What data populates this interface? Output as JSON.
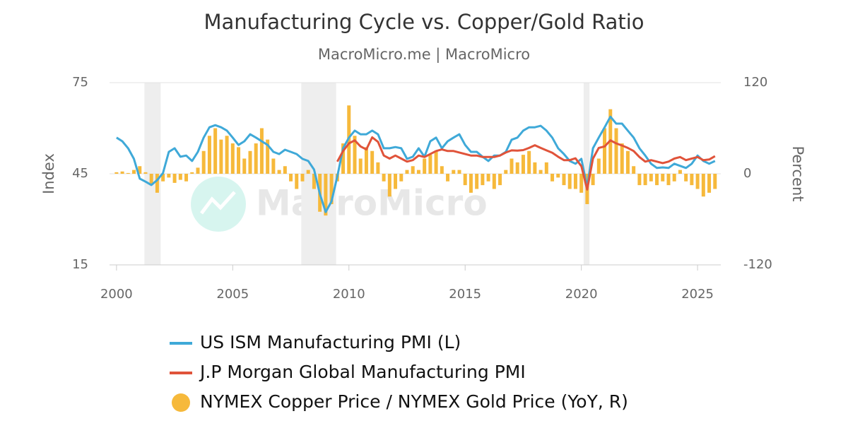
{
  "chart_data": {
    "type": "combo",
    "title": "Manufacturing Cycle vs. Copper/Gold Ratio",
    "subtitle": "MacroMicro.me | MacroMicro",
    "watermark": "MacroMicro",
    "ylabel": "Index",
    "y2label": "Percent",
    "xlim": [
      1999.7,
      2026.0
    ],
    "xticks": [
      2000,
      2005,
      2010,
      2015,
      2020,
      2025
    ],
    "ylim": [
      15,
      75
    ],
    "yticks": [
      15,
      45,
      75
    ],
    "y2lim": [
      -120,
      120
    ],
    "y2ticks": [
      -120,
      0,
      120
    ],
    "grid": true,
    "recessions": [
      [
        2001.2,
        2001.9
      ],
      [
        2007.95,
        2009.45
      ],
      [
        2020.1,
        2020.35
      ]
    ],
    "x": [
      2000,
      2000.25,
      2000.5,
      2000.75,
      2001,
      2001.25,
      2001.5,
      2001.75,
      2002,
      2002.25,
      2002.5,
      2002.75,
      2003,
      2003.25,
      2003.5,
      2003.75,
      2004,
      2004.25,
      2004.5,
      2004.75,
      2005,
      2005.25,
      2005.5,
      2005.75,
      2006,
      2006.25,
      2006.5,
      2006.75,
      2007,
      2007.25,
      2007.5,
      2007.75,
      2008,
      2008.25,
      2008.5,
      2008.75,
      2009,
      2009.25,
      2009.5,
      2009.75,
      2010,
      2010.25,
      2010.5,
      2010.75,
      2011,
      2011.25,
      2011.5,
      2011.75,
      2012,
      2012.25,
      2012.5,
      2012.75,
      2013,
      2013.25,
      2013.5,
      2013.75,
      2014,
      2014.25,
      2014.5,
      2014.75,
      2015,
      2015.25,
      2015.5,
      2015.75,
      2016,
      2016.25,
      2016.5,
      2016.75,
      2017,
      2017.25,
      2017.5,
      2017.75,
      2018,
      2018.25,
      2018.5,
      2018.75,
      2019,
      2019.25,
      2019.5,
      2019.75,
      2020,
      2020.25,
      2020.5,
      2020.75,
      2021,
      2021.25,
      2021.5,
      2021.75,
      2022,
      2022.25,
      2022.5,
      2022.75,
      2023,
      2023.25,
      2023.5,
      2023.75,
      2024,
      2024.25,
      2024.5,
      2024.75,
      2025,
      2025.25,
      2025.5,
      2025.75
    ],
    "series": [
      {
        "name": "NYMEX Copper Price / NYMEX Gold Price (YoY, R)",
        "type": "bar",
        "axis": "y2",
        "color": "#f6b93b",
        "values": [
          2,
          3,
          1,
          5,
          10,
          2,
          -15,
          -25,
          -10,
          -5,
          -12,
          -8,
          -10,
          2,
          8,
          30,
          50,
          60,
          45,
          50,
          40,
          35,
          20,
          30,
          40,
          60,
          45,
          20,
          5,
          10,
          -10,
          -20,
          -10,
          5,
          -20,
          -50,
          -55,
          -40,
          -10,
          40,
          90,
          50,
          20,
          35,
          30,
          15,
          -10,
          -30,
          -20,
          -10,
          5,
          10,
          5,
          20,
          25,
          30,
          10,
          -10,
          5,
          5,
          -15,
          -25,
          -20,
          -15,
          -10,
          -20,
          -15,
          5,
          20,
          15,
          25,
          30,
          15,
          5,
          15,
          -10,
          -5,
          -15,
          -20,
          -20,
          -25,
          -40,
          -15,
          20,
          60,
          85,
          60,
          40,
          30,
          10,
          -15,
          -15,
          -10,
          -15,
          -10,
          -15,
          -10,
          5,
          -10,
          -15,
          -20,
          -30,
          -25,
          -20
        ]
      },
      {
        "name": "US ISM Manufacturing PMI (L)",
        "type": "line",
        "color": "#3fa9d8",
        "values": [
          56.9,
          55.7,
          53.4,
          49.9,
          43.4,
          42.4,
          41.3,
          42.9,
          45.2,
          52.2,
          53.4,
          50.6,
          51.0,
          49.2,
          52.2,
          56.9,
          60.3,
          61.0,
          60.3,
          59.2,
          56.9,
          54.5,
          55.7,
          58.0,
          56.9,
          55.7,
          54.5,
          52.2,
          51.5,
          52.9,
          52.2,
          51.5,
          49.9,
          49.2,
          46.4,
          38.3,
          32.4,
          35.9,
          44.1,
          53.4,
          56.9,
          59.2,
          58.0,
          58.0,
          59.2,
          58.0,
          53.4,
          53.4,
          53.8,
          53.4,
          49.9,
          50.6,
          53.4,
          50.6,
          55.7,
          56.9,
          53.4,
          55.7,
          56.9,
          58.0,
          54.5,
          52.2,
          52.2,
          50.6,
          49.2,
          51.0,
          51.0,
          52.2,
          56.2,
          56.9,
          59.2,
          60.3,
          60.3,
          60.8,
          59.2,
          56.9,
          53.4,
          51.5,
          49.2,
          48.3,
          49.9,
          40.6,
          53.4,
          56.9,
          60.3,
          63.8,
          61.5,
          61.5,
          59.2,
          56.9,
          53.4,
          51.0,
          48.3,
          46.9,
          47.1,
          46.9,
          48.3,
          47.6,
          46.9,
          48.3,
          51.0,
          49.2,
          48.3,
          49.2
        ]
      },
      {
        "name": "J.P Morgan Global Manufacturing PMI",
        "type": "line",
        "color": "#e0533a",
        "values": [
          null,
          null,
          null,
          null,
          null,
          null,
          null,
          null,
          null,
          null,
          null,
          null,
          null,
          null,
          null,
          null,
          null,
          null,
          null,
          null,
          null,
          null,
          null,
          null,
          null,
          null,
          null,
          null,
          null,
          null,
          null,
          null,
          null,
          null,
          null,
          null,
          null,
          null,
          49.0,
          52.5,
          55.0,
          56.0,
          54.0,
          53.0,
          57.0,
          55.5,
          51.0,
          50.0,
          51.0,
          50.0,
          49.0,
          49.5,
          51.0,
          50.5,
          51.5,
          52.5,
          53.0,
          52.5,
          52.5,
          52.0,
          51.5,
          51.0,
          51.0,
          50.5,
          50.5,
          50.5,
          51.0,
          52.0,
          52.7,
          52.6,
          52.8,
          53.5,
          54.4,
          53.5,
          52.7,
          51.9,
          50.6,
          49.5,
          49.5,
          50.1,
          47.5,
          39.8,
          50.0,
          53.5,
          54.0,
          56.0,
          55.0,
          54.3,
          53.5,
          52.5,
          50.5,
          49.0,
          49.5,
          49.0,
          48.5,
          49.0,
          50.0,
          50.5,
          49.5,
          50.0,
          50.5,
          49.5,
          49.7,
          50.8
        ]
      }
    ],
    "legend_order": [
      1,
      2,
      0
    ]
  }
}
